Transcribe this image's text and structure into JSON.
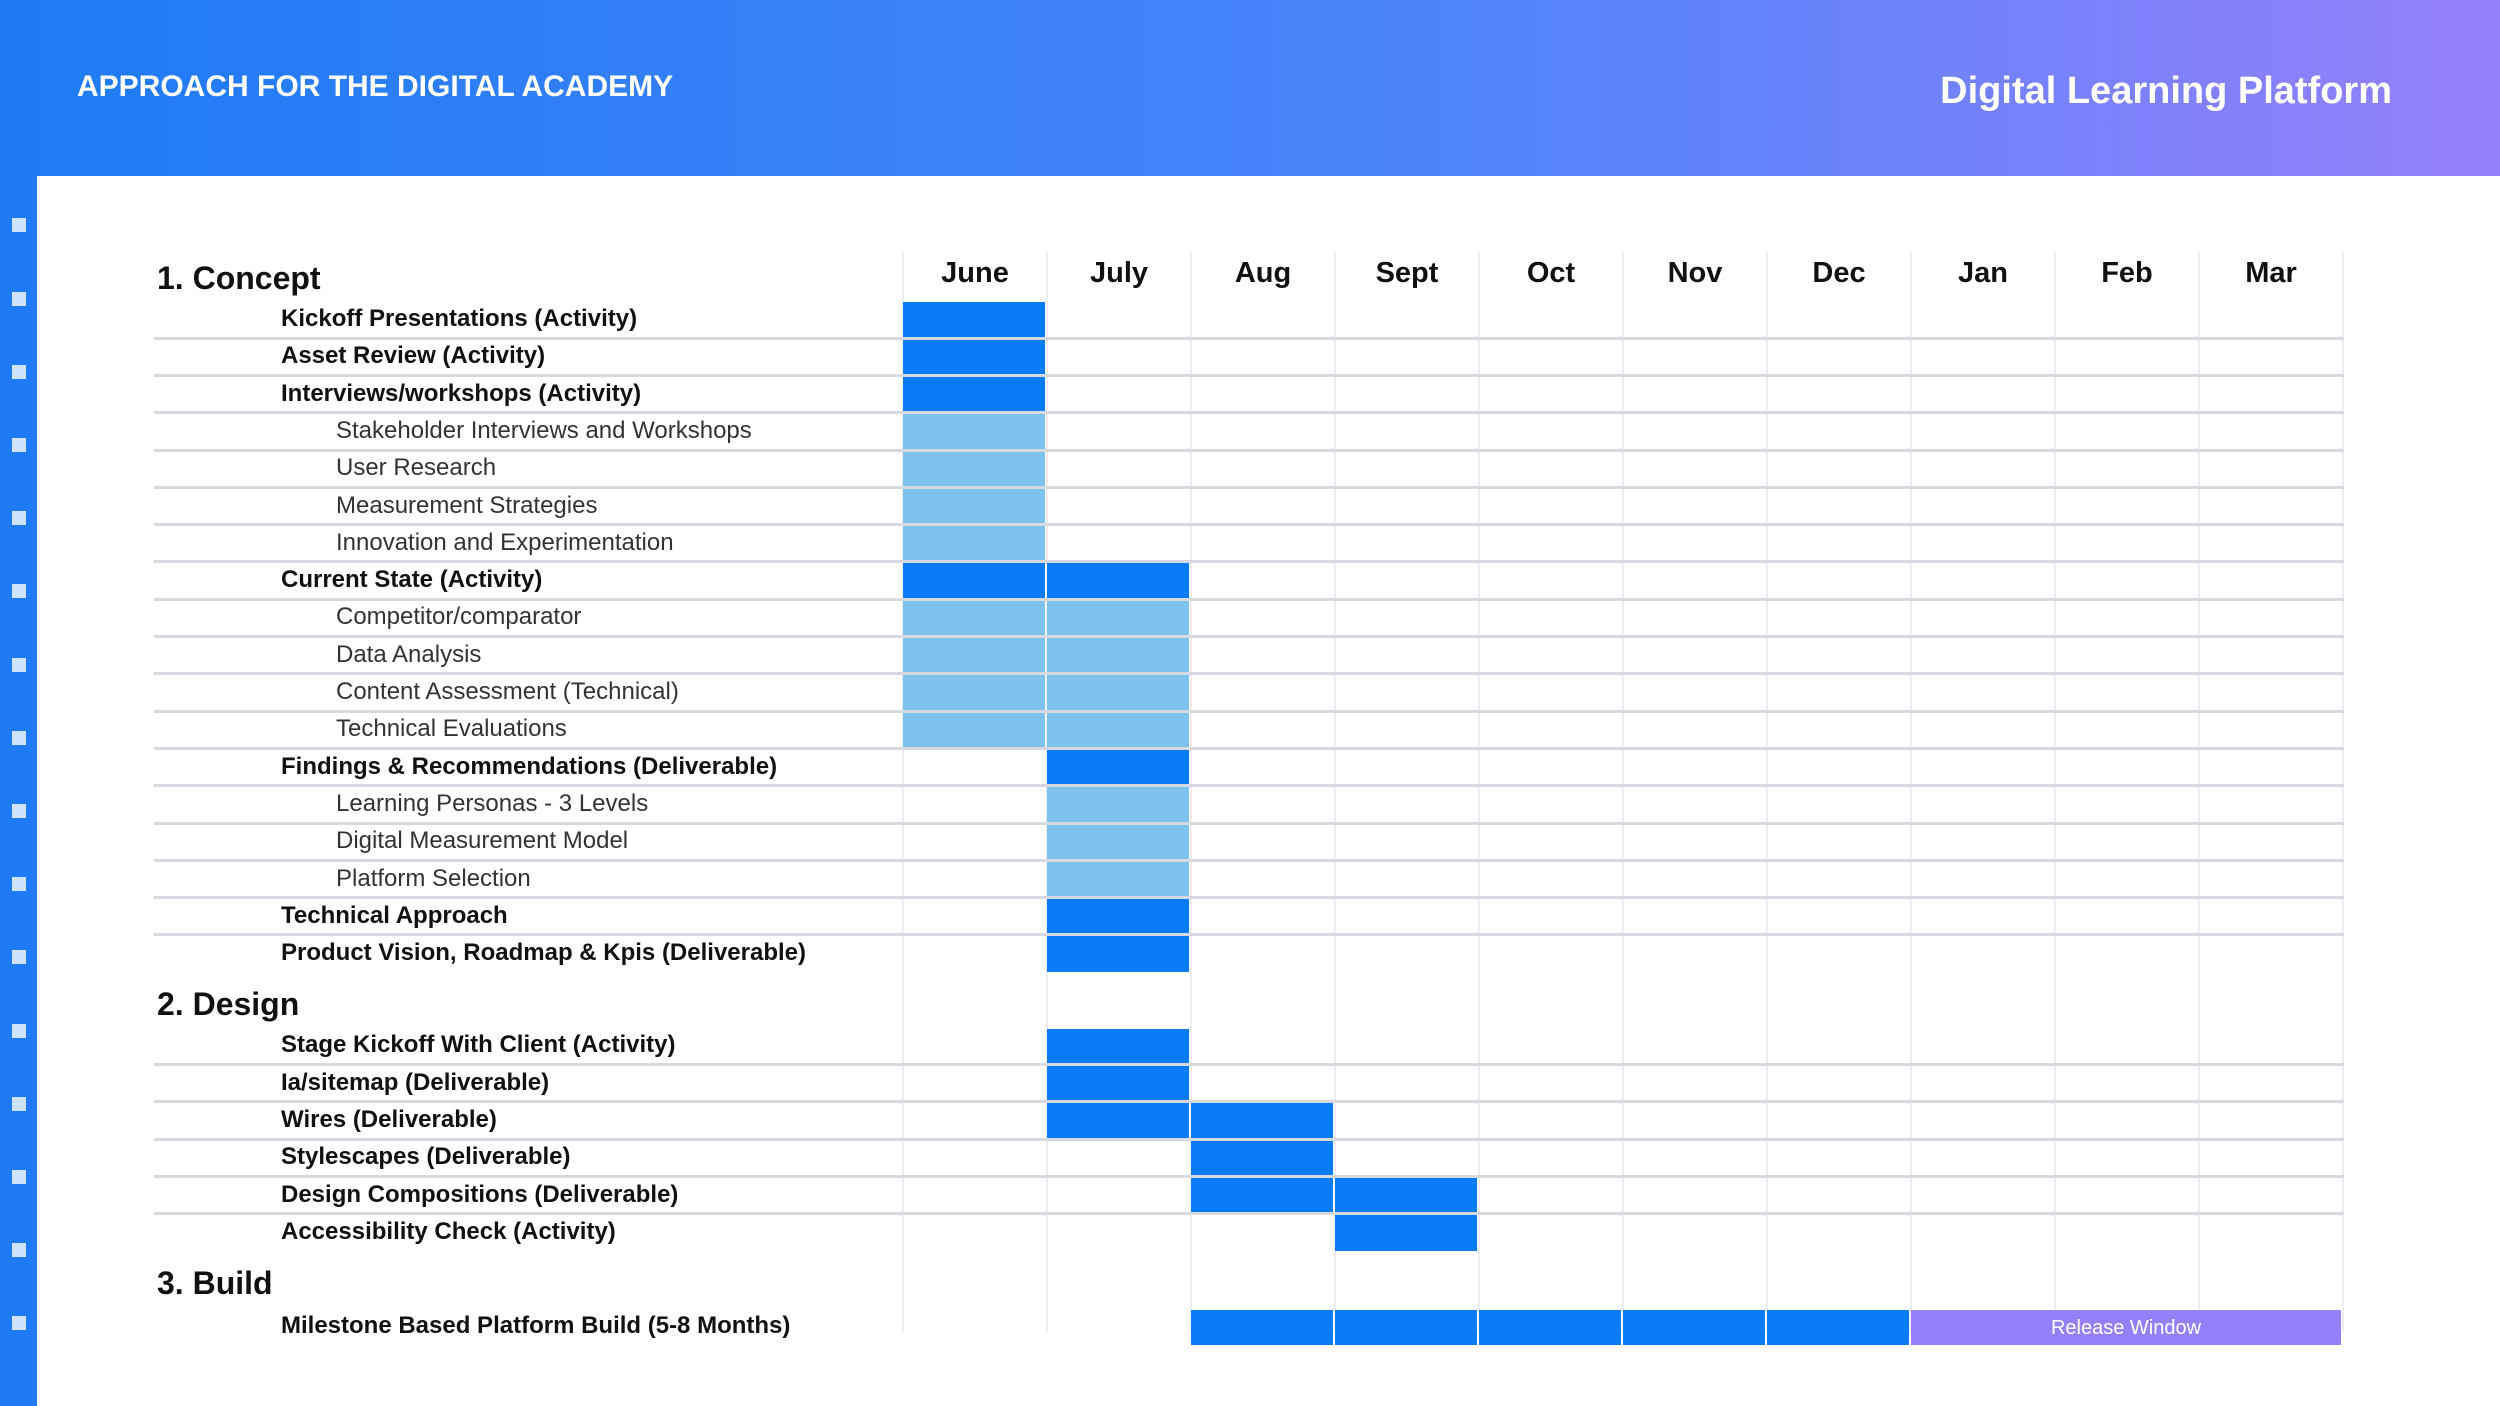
{
  "header": {
    "title": "APPROACH FOR THE DIGITAL ACADEMY",
    "brand": "Digital Learning Platform"
  },
  "colors": {
    "header_gradient_start": "#1E7BF5",
    "header_gradient_end": "#9680FB",
    "main_bar": "#0B7BF7",
    "sub_bar": "#7EC3EE",
    "release_bar": "#9580F9"
  },
  "chart_data": {
    "type": "gantt",
    "months": [
      "June",
      "July",
      "Aug",
      "Sept",
      "Oct",
      "Nov",
      "Dec",
      "Jan",
      "Feb",
      "Mar"
    ],
    "sections": [
      {
        "label": "1. Concept",
        "rows": [
          {
            "label": "Kickoff Presentations (Activity)",
            "level": 1,
            "start": 0,
            "end": 0
          },
          {
            "label": "Asset Review (Activity)",
            "level": 1,
            "start": 0,
            "end": 0
          },
          {
            "label": "Interviews/workshops (Activity)",
            "level": 1,
            "start": 0,
            "end": 0
          },
          {
            "label": "Stakeholder Interviews and Workshops",
            "level": 2,
            "start": 0,
            "end": 0
          },
          {
            "label": "User Research",
            "level": 2,
            "start": 0,
            "end": 0
          },
          {
            "label": "Measurement Strategies",
            "level": 2,
            "start": 0,
            "end": 0
          },
          {
            "label": "Innovation and Experimentation",
            "level": 2,
            "start": 0,
            "end": 0
          },
          {
            "label": "Current State (Activity)",
            "level": 1,
            "start": 0,
            "end": 1
          },
          {
            "label": "Competitor/comparator",
            "level": 2,
            "start": 0,
            "end": 1
          },
          {
            "label": "Data Analysis",
            "level": 2,
            "start": 0,
            "end": 1
          },
          {
            "label": "Content Assessment (Technical)",
            "level": 2,
            "start": 0,
            "end": 1
          },
          {
            "label": "Technical Evaluations",
            "level": 2,
            "start": 0,
            "end": 1
          },
          {
            "label": "Findings & Recommendations (Deliverable)",
            "level": 1,
            "start": 1,
            "end": 1
          },
          {
            "label": "Learning Personas - 3 Levels",
            "level": 2,
            "start": 1,
            "end": 1
          },
          {
            "label": "Digital Measurement Model",
            "level": 2,
            "start": 1,
            "end": 1
          },
          {
            "label": "Platform Selection",
            "level": 2,
            "start": 1,
            "end": 1
          },
          {
            "label": "Technical Approach",
            "level": 1,
            "start": 1,
            "end": 1
          },
          {
            "label": "Product Vision, Roadmap & Kpis (Deliverable)",
            "level": 1,
            "start": 1,
            "end": 1
          }
        ]
      },
      {
        "label": "2. Design",
        "rows": [
          {
            "label": "Stage Kickoff With Client (Activity)",
            "level": 1,
            "start": 1,
            "end": 1
          },
          {
            "label": "Ia/sitemap (Deliverable)",
            "level": 1,
            "start": 1,
            "end": 1
          },
          {
            "label": "Wires (Deliverable)",
            "level": 1,
            "start": 1,
            "end": 2
          },
          {
            "label": "Stylescapes (Deliverable)",
            "level": 1,
            "start": 2,
            "end": 2
          },
          {
            "label": "Design Compositions (Deliverable)",
            "level": 1,
            "start": 2,
            "end": 3
          },
          {
            "label": "Accessibility Check (Activity)",
            "level": 1,
            "start": 3,
            "end": 3
          }
        ]
      },
      {
        "label": "3. Build",
        "rows": [
          {
            "label": "Milestone Based Platform Build (5-8 Months)",
            "level": 1,
            "start": 2,
            "end": 6,
            "release": {
              "label": "Release Window",
              "start": 7,
              "end": 9
            }
          }
        ]
      }
    ]
  }
}
